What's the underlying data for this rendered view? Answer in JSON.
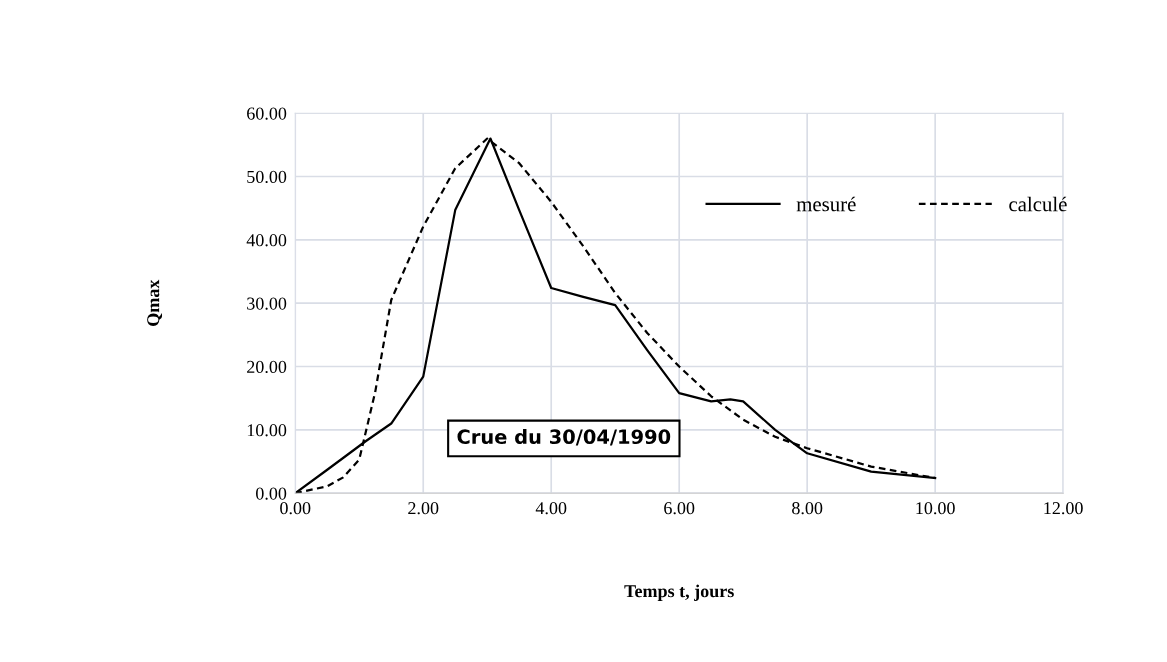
{
  "chart_data": {
    "type": "line",
    "xlabel": "Temps t, jours",
    "ylabel": "Qmax",
    "annotations": [
      "Crue du 30/04/1990"
    ],
    "series": [
      {
        "name": "mesuré",
        "color": "#000000",
        "line_style": "solid",
        "x": [
          0,
          0.5,
          1.1,
          1.5,
          2,
          2.5,
          3.05,
          3.5,
          4,
          4.5,
          5,
          5.5,
          6,
          6.5,
          6.8,
          7,
          7.5,
          8,
          9,
          10
        ],
        "values": [
          0,
          3.7,
          8.2,
          11,
          18.4,
          44.7,
          56,
          44.7,
          32.4,
          31,
          29.7,
          22.6,
          15.8,
          14.5,
          14.8,
          14.5,
          10,
          6.3,
          3.4,
          2.4
        ]
      },
      {
        "name": "calculé",
        "color": "#000000",
        "line_style": "dashed",
        "x": [
          0,
          0.5,
          0.75,
          1,
          1.25,
          1.5,
          2,
          2.5,
          3,
          3.5,
          4,
          4.5,
          5,
          5.5,
          6,
          6.5,
          7,
          7.5,
          8,
          9,
          10
        ],
        "values": [
          0,
          1.1,
          2.5,
          5.3,
          16,
          30.5,
          42.1,
          51.3,
          56,
          52.1,
          46,
          39,
          31.6,
          25.3,
          20,
          15.3,
          11.6,
          8.9,
          7.1,
          4.2,
          2.4
        ]
      }
    ],
    "xlim": [
      0,
      12
    ],
    "ylim": [
      0,
      60
    ],
    "xticks": [
      {
        "value": 0,
        "label": "0.00"
      },
      {
        "value": 2,
        "label": "2.00"
      },
      {
        "value": 4,
        "label": "4.00"
      },
      {
        "value": 6,
        "label": "6.00"
      },
      {
        "value": 8,
        "label": "8.00"
      },
      {
        "value": 10,
        "label": "10.00"
      },
      {
        "value": 12,
        "label": "12.00"
      }
    ],
    "yticks": [
      {
        "value": 0,
        "label": "0.00"
      },
      {
        "value": 10,
        "label": "10.00"
      },
      {
        "value": 20,
        "label": "20.00"
      },
      {
        "value": 30,
        "label": "30.00"
      },
      {
        "value": 40,
        "label": "40.00"
      },
      {
        "value": 50,
        "label": "50.00"
      },
      {
        "value": 60,
        "label": "60.00"
      }
    ],
    "grid": true,
    "legend": "top right",
    "marker": "none"
  }
}
